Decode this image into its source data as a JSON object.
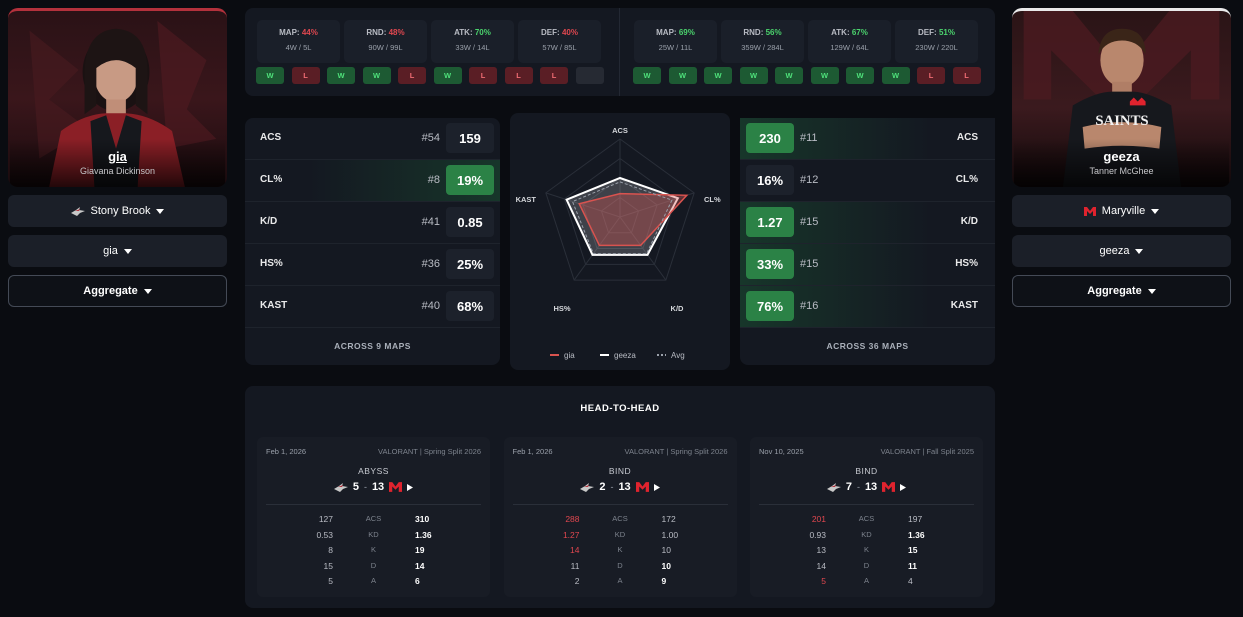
{
  "left_player": {
    "handle": "gia",
    "real_name": "Giavana Dickinson",
    "team": "Stony Brook",
    "player_select": "gia",
    "mode": "Aggregate",
    "team_color": "#b3313c"
  },
  "right_player": {
    "handle": "geeza",
    "real_name": "Tanner McGhee",
    "team": "Maryville",
    "player_select": "geeza",
    "mode": "Aggregate",
    "jersey_text": "SAINTS",
    "team_color": "#e0232e"
  },
  "left_summary": {
    "stats": [
      {
        "label": "MAP:",
        "pct": "44%",
        "record": "4W / 5L",
        "tone": "r"
      },
      {
        "label": "RND:",
        "pct": "48%",
        "record": "90W / 99L",
        "tone": "r"
      },
      {
        "label": "ATK:",
        "pct": "70%",
        "record": "33W / 14L",
        "tone": "g"
      },
      {
        "label": "DEF:",
        "pct": "40%",
        "record": "57W / 85L",
        "tone": "r"
      }
    ],
    "results": [
      "W",
      "L",
      "W",
      "W",
      "L",
      "W",
      "L",
      "L",
      "L",
      ""
    ]
  },
  "right_summary": {
    "stats": [
      {
        "label": "MAP:",
        "pct": "69%",
        "record": "25W / 11L",
        "tone": "g"
      },
      {
        "label": "RND:",
        "pct": "56%",
        "record": "359W / 284L",
        "tone": "g"
      },
      {
        "label": "ATK:",
        "pct": "67%",
        "record": "129W / 64L",
        "tone": "g"
      },
      {
        "label": "DEF:",
        "pct": "51%",
        "record": "230W / 220L",
        "tone": "g"
      }
    ],
    "results": [
      "W",
      "W",
      "W",
      "W",
      "W",
      "W",
      "W",
      "W",
      "L",
      "L"
    ]
  },
  "left_stats": {
    "rows": [
      {
        "label": "ACS",
        "rank": "#54",
        "value": "159",
        "highlight": false
      },
      {
        "label": "CL%",
        "rank": "#8",
        "value": "19%",
        "highlight": true
      },
      {
        "label": "K/D",
        "rank": "#41",
        "value": "0.85",
        "highlight": false
      },
      {
        "label": "HS%",
        "rank": "#36",
        "value": "25%",
        "highlight": false
      },
      {
        "label": "KAST",
        "rank": "#40",
        "value": "68%",
        "highlight": false
      }
    ],
    "footer": "ACROSS 9 MAPS"
  },
  "right_stats": {
    "rows": [
      {
        "label": "ACS",
        "rank": "#11",
        "value": "230",
        "highlight": true
      },
      {
        "label": "CL%",
        "rank": "#12",
        "value": "16%",
        "highlight": false
      },
      {
        "label": "K/D",
        "rank": "#15",
        "value": "1.27",
        "highlight": true
      },
      {
        "label": "HS%",
        "rank": "#15",
        "value": "33%",
        "highlight": true
      },
      {
        "label": "KAST",
        "rank": "#16",
        "value": "76%",
        "highlight": true
      }
    ],
    "footer": "ACROSS 36 MAPS"
  },
  "radar": {
    "axes": [
      "ACS",
      "CL%",
      "K/D",
      "HS%",
      "KAST"
    ],
    "legend": [
      "gia",
      "geeza",
      "Avg"
    ],
    "colors": {
      "gia": "#d9534f",
      "geeza": "#ffffff",
      "avg": "#9aa0aa"
    },
    "series_values": {
      "gia": [
        0.3,
        0.9,
        0.45,
        0.45,
        0.55
      ],
      "geeza": [
        0.5,
        0.78,
        0.6,
        0.6,
        0.72
      ],
      "avg": [
        0.45,
        0.7,
        0.58,
        0.58,
        0.64
      ]
    }
  },
  "h2h": {
    "title": "HEAD-TO-HEAD",
    "matches": [
      {
        "date": "Feb 1, 2026",
        "event": "VALORANT | Spring Split 2026",
        "map": "ABYSS",
        "score_left": "5",
        "dash": "-",
        "score_right": "13",
        "rows": [
          {
            "a": "127",
            "k": "ACS",
            "b": "310",
            "win": "b"
          },
          {
            "a": "0.53",
            "k": "KD",
            "b": "1.36",
            "win": "b"
          },
          {
            "a": "8",
            "k": "K",
            "b": "19",
            "win": "b"
          },
          {
            "a": "15",
            "k": "D",
            "b": "14",
            "win": "b"
          },
          {
            "a": "5",
            "k": "A",
            "b": "6",
            "win": "b"
          }
        ]
      },
      {
        "date": "Feb 1, 2026",
        "event": "VALORANT | Spring Split 2026",
        "map": "BIND",
        "score_left": "2",
        "dash": "-",
        "score_right": "13",
        "rows": [
          {
            "a": "288",
            "k": "ACS",
            "b": "172",
            "win": "a"
          },
          {
            "a": "1.27",
            "k": "KD",
            "b": "1.00",
            "win": "a"
          },
          {
            "a": "14",
            "k": "K",
            "b": "10",
            "win": "a"
          },
          {
            "a": "11",
            "k": "D",
            "b": "10",
            "win": "b"
          },
          {
            "a": "2",
            "k": "A",
            "b": "9",
            "win": "b"
          }
        ]
      },
      {
        "date": "Nov 10, 2025",
        "event": "VALORANT | Fall Split 2025",
        "map": "BIND",
        "score_left": "7",
        "dash": "-",
        "score_right": "13",
        "rows": [
          {
            "a": "201",
            "k": "ACS",
            "b": "197",
            "win": "a"
          },
          {
            "a": "0.93",
            "k": "KD",
            "b": "1.36",
            "win": "b"
          },
          {
            "a": "13",
            "k": "K",
            "b": "15",
            "win": "b"
          },
          {
            "a": "14",
            "k": "D",
            "b": "11",
            "win": "b"
          },
          {
            "a": "5",
            "k": "A",
            "b": "4",
            "win": "a"
          }
        ]
      }
    ]
  },
  "icons": {
    "left_team_logo": "wolf-logo-icon",
    "right_team_logo": "m-logo-icon",
    "dropdown_caret": "caret-down-icon",
    "play": "play-icon"
  }
}
